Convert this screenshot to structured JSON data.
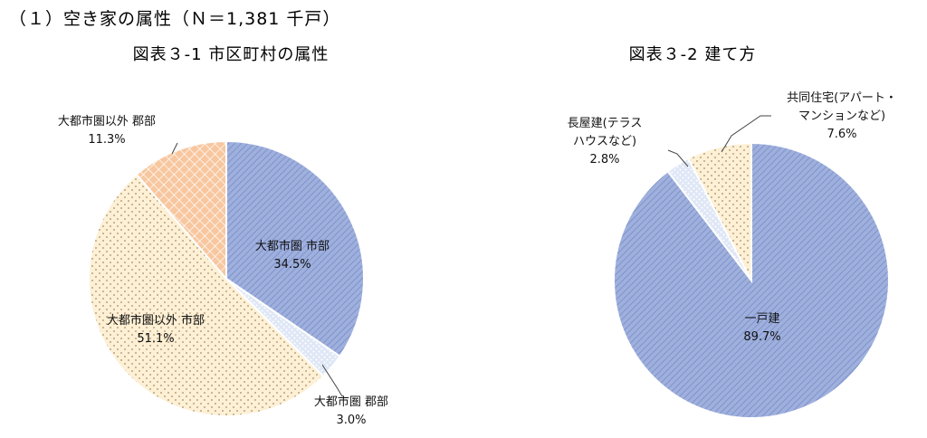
{
  "heading": "（１）空き家の属性（Ｎ＝1,381 千戸）",
  "chart_data": [
    {
      "type": "pie",
      "title": "図表３-1 市区町村の属性",
      "slices": [
        {
          "label": "大都市圏 市部",
          "value": 34.5,
          "value_label": "34.5%",
          "color": "#9fb0dd",
          "pattern": "diagonal"
        },
        {
          "label": "大都市圏 郡部",
          "value": 3.0,
          "value_label": "3.0%",
          "color": "#dfe7f6",
          "pattern": "dots-white"
        },
        {
          "label": "大都市圏以外 市部",
          "value": 51.1,
          "value_label": "51.1%",
          "color": "#fdf0d5",
          "pattern": "dots"
        },
        {
          "label": "大都市圏以外 郡部",
          "value": 11.3,
          "value_label": "11.3%",
          "color": "#f8c79f",
          "pattern": "crosshatch"
        }
      ],
      "start": "12 o'clock",
      "direction": "clockwise"
    },
    {
      "type": "pie",
      "title": "図表３-2 建て方",
      "slices": [
        {
          "label": "一戸建",
          "value": 89.7,
          "value_label": "89.7%",
          "color": "#9fb0dd",
          "pattern": "diagonal"
        },
        {
          "label": "長屋建(テラスハウスなど)",
          "label_lines": [
            "長屋建(テラス",
            "ハウスなど)"
          ],
          "value": 2.8,
          "value_label": "2.8%",
          "color": "#dfe7f6",
          "pattern": "dots-white"
        },
        {
          "label": "共同住宅(アパート・マンションなど)",
          "label_lines": [
            "共同住宅(アパート・",
            "マンションなど)"
          ],
          "value": 7.6,
          "value_label": "7.6%",
          "color": "#fdf0d5",
          "pattern": "dots"
        }
      ],
      "start": "12 o'clock",
      "direction": "clockwise"
    }
  ]
}
